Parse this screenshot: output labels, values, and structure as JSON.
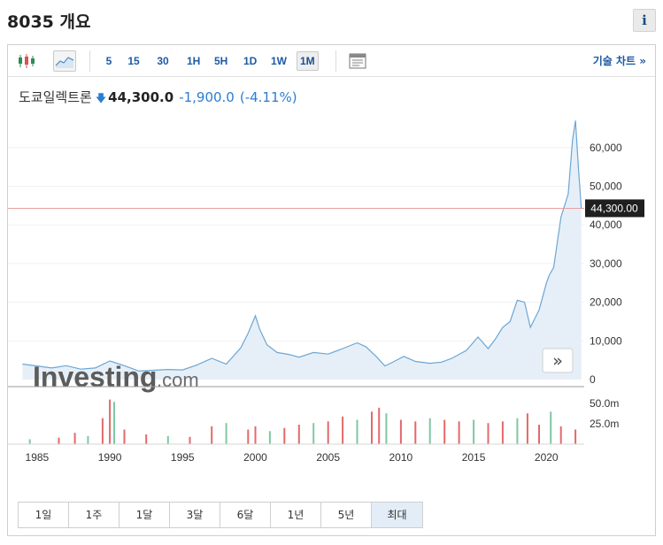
{
  "page": {
    "title": "8035 개요",
    "info_glyph": "i"
  },
  "toolbar": {
    "intervals": [
      "5",
      "15",
      "30",
      "1H",
      "5H",
      "1D",
      "1W",
      "1M"
    ],
    "selected_interval": "1M",
    "tech_chart_link": "기술 차트 »",
    "icons": [
      "candlestick-icon",
      "area-chart-icon",
      "chart-settings-icon"
    ]
  },
  "quote": {
    "name": "도쿄일렉트론",
    "direction_icon": "down-arrow-icon",
    "price": "44,300.0",
    "change": "-1,900.0",
    "change_pct": "(-4.11%)",
    "down_color": "#2a7ed2"
  },
  "chart": {
    "watermark": "Investing",
    "watermark_suffix": ".com",
    "current_price_label": "44,300.00",
    "scroll_button_glyph": "»",
    "price_axis_ticks": [
      "60,000",
      "50,000",
      "40,000",
      "30,000",
      "20,000",
      "10,000",
      "0"
    ],
    "volume_axis_ticks": [
      "50.0m",
      "25.0m"
    ],
    "x_axis_ticks": [
      "1985",
      "1990",
      "1995",
      "2000",
      "2005",
      "2010",
      "2015",
      "2020"
    ],
    "line_color": "#6ca6d4",
    "area_fill": "#e6eff8",
    "price_line_color": "#e8a2a2",
    "up_color": "#7ec8a2",
    "down_color": "#e26a6a"
  },
  "chart_data": {
    "type": "area",
    "title": "",
    "xlabel": "",
    "ylabel": "",
    "ylim": [
      0,
      65000
    ],
    "volume_ylim": [
      0,
      60
    ],
    "x": [
      1984.0,
      1986.0,
      1987.0,
      1988.0,
      1989.0,
      1990.0,
      1991.0,
      1992.0,
      1994.0,
      1995.0,
      1996.0,
      1997.0,
      1998.0,
      1999.0,
      1999.5,
      2000.0,
      2000.3,
      2000.8,
      2001.5,
      2002.3,
      2003.0,
      2004.0,
      2005.0,
      2006.0,
      2007.0,
      2007.6,
      2008.3,
      2008.9,
      2009.5,
      2010.2,
      2011.0,
      2012.0,
      2012.8,
      2013.5,
      2014.5,
      2015.3,
      2016.0,
      2016.5,
      2017.0,
      2017.5,
      2018.0,
      2018.5,
      2018.9,
      2019.5,
      2020.0,
      2020.2,
      2020.5,
      2021.0,
      2021.5,
      2021.8,
      2022.0,
      2022.2,
      2022.4
    ],
    "series": [
      {
        "values": [
          4000,
          3000,
          3600,
          2700,
          3000,
          4800,
          3600,
          2200,
          2600,
          2500,
          3800,
          5500,
          4000,
          8200,
          12000,
          16500,
          13000,
          9000,
          7000,
          6500,
          5800,
          7000,
          6600,
          8000,
          9500,
          8500,
          6000,
          3500,
          4600,
          6000,
          4700,
          4200,
          4500,
          5500,
          7500,
          11000,
          8000,
          10500,
          13500,
          15000,
          20500,
          20000,
          13500,
          18000,
          25000,
          27000,
          29000,
          42000,
          48000,
          62000,
          67000,
          55000,
          44300
        ]
      }
    ],
    "volume": [
      {
        "x": 1984.5,
        "value": 6
      },
      {
        "x": 1986.5,
        "value": 8
      },
      {
        "x": 1987.6,
        "value": 14
      },
      {
        "x": 1988.5,
        "value": 10
      },
      {
        "x": 1989.5,
        "value": 32
      },
      {
        "x": 1990.0,
        "value": 55
      },
      {
        "x": 1990.3,
        "value": 52
      },
      {
        "x": 1991.0,
        "value": 18
      },
      {
        "x": 1992.5,
        "value": 12
      },
      {
        "x": 1994.0,
        "value": 10
      },
      {
        "x": 1995.5,
        "value": 9
      },
      {
        "x": 1997.0,
        "value": 22
      },
      {
        "x": 1998.0,
        "value": 26
      },
      {
        "x": 1999.5,
        "value": 18
      },
      {
        "x": 2000.0,
        "value": 22
      },
      {
        "x": 2001.0,
        "value": 16
      },
      {
        "x": 2002.0,
        "value": 20
      },
      {
        "x": 2003.0,
        "value": 24
      },
      {
        "x": 2004.0,
        "value": 26
      },
      {
        "x": 2005.0,
        "value": 28
      },
      {
        "x": 2006.0,
        "value": 34
      },
      {
        "x": 2007.0,
        "value": 30
      },
      {
        "x": 2008.0,
        "value": 40
      },
      {
        "x": 2008.5,
        "value": 45
      },
      {
        "x": 2009.0,
        "value": 38
      },
      {
        "x": 2010.0,
        "value": 30
      },
      {
        "x": 2011.0,
        "value": 28
      },
      {
        "x": 2012.0,
        "value": 32
      },
      {
        "x": 2013.0,
        "value": 30
      },
      {
        "x": 2014.0,
        "value": 28
      },
      {
        "x": 2015.0,
        "value": 30
      },
      {
        "x": 2016.0,
        "value": 26
      },
      {
        "x": 2017.0,
        "value": 28
      },
      {
        "x": 2018.0,
        "value": 32
      },
      {
        "x": 2018.7,
        "value": 38
      },
      {
        "x": 2019.5,
        "value": 24
      },
      {
        "x": 2020.3,
        "value": 40
      },
      {
        "x": 2021.0,
        "value": 22
      },
      {
        "x": 2022.0,
        "value": 18
      }
    ]
  },
  "range_buttons": {
    "labels": [
      "1일",
      "1주",
      "1달",
      "3달",
      "6달",
      "1년",
      "5년",
      "최대"
    ],
    "selected": "최대"
  }
}
